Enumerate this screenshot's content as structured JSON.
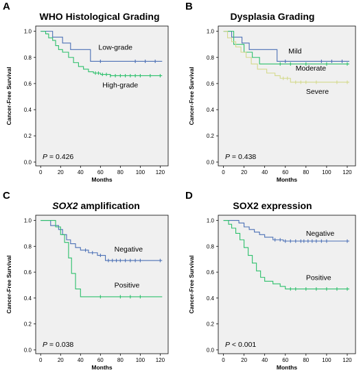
{
  "chart_data": [
    {
      "panel": "A",
      "type": "line",
      "title": "WHO Histological Grading",
      "xlabel": "Months",
      "ylabel": "Cancer-Free Survival",
      "xticks": [
        "0",
        "20",
        "40",
        "60",
        "80",
        "100",
        "120"
      ],
      "yticks": [
        "0.0",
        "0.2",
        "0.4",
        "0.6",
        "0.8",
        "1.0"
      ],
      "xlim": [
        -5,
        128
      ],
      "ylim": [
        -0.03,
        1.04
      ],
      "p_label": "P",
      "p_value": " = 0.426",
      "series": [
        {
          "name": "Low-grade",
          "color": "#4a6fb5",
          "label_pos": [
            58,
            0.86
          ],
          "steps": [
            [
              0,
              1.0
            ],
            [
              12,
              0.955
            ],
            [
              22,
              0.91
            ],
            [
              30,
              0.86
            ],
            [
              50,
              0.77
            ],
            [
              122,
              0.77
            ]
          ],
          "censored": [
            60,
            95,
            105,
            115
          ]
        },
        {
          "name": "High-grade",
          "color": "#2bbf6a",
          "label_pos": [
            62,
            0.57
          ],
          "steps": [
            [
              0,
              1.0
            ],
            [
              5,
              0.98
            ],
            [
              8,
              0.95
            ],
            [
              12,
              0.93
            ],
            [
              15,
              0.89
            ],
            [
              18,
              0.86
            ],
            [
              22,
              0.84
            ],
            [
              28,
              0.8
            ],
            [
              33,
              0.76
            ],
            [
              38,
              0.73
            ],
            [
              43,
              0.71
            ],
            [
              48,
              0.69
            ],
            [
              53,
              0.68
            ],
            [
              60,
              0.67
            ],
            [
              70,
              0.66
            ],
            [
              122,
              0.66
            ]
          ],
          "censored": [
            55,
            58,
            62,
            66,
            70,
            75,
            80,
            85,
            90,
            95,
            100,
            110,
            120
          ]
        }
      ]
    },
    {
      "panel": "B",
      "type": "line",
      "title": "Dysplasia Grading",
      "xlabel": "Months",
      "ylabel": "Cancer-Free Survival",
      "xticks": [
        "0",
        "20",
        "40",
        "60",
        "80",
        "100",
        "120"
      ],
      "yticks": [
        "0.0",
        "0.2",
        "0.4",
        "0.6",
        "0.8",
        "1.0"
      ],
      "xlim": [
        -5,
        128
      ],
      "ylim": [
        -0.03,
        1.04
      ],
      "p_label": "P",
      "p_value": " = 0.438",
      "series": [
        {
          "name": "Mild",
          "color": "#4a6fb5",
          "label_pos": [
            63,
            0.83
          ],
          "steps": [
            [
              0,
              1.0
            ],
            [
              8,
              0.955
            ],
            [
              18,
              0.91
            ],
            [
              25,
              0.86
            ],
            [
              52,
              0.77
            ],
            [
              122,
              0.77
            ]
          ],
          "censored": [
            60,
            95,
            105,
            115
          ]
        },
        {
          "name": "Moderate",
          "color": "#2bbf6a",
          "label_pos": [
            70,
            0.7
          ],
          "steps": [
            [
              0,
              1.0
            ],
            [
              10,
              0.9
            ],
            [
              20,
              0.84
            ],
            [
              28,
              0.8
            ],
            [
              35,
              0.75
            ],
            [
              122,
              0.75
            ]
          ],
          "censored": [
            55,
            65,
            80,
            100,
            120
          ]
        },
        {
          "name": "Severe",
          "color": "#d3d98a",
          "label_pos": [
            80,
            0.52
          ],
          "steps": [
            [
              0,
              1.0
            ],
            [
              4,
              0.95
            ],
            [
              8,
              0.92
            ],
            [
              12,
              0.88
            ],
            [
              17,
              0.84
            ],
            [
              22,
              0.8
            ],
            [
              27,
              0.75
            ],
            [
              33,
              0.71
            ],
            [
              42,
              0.68
            ],
            [
              50,
              0.66
            ],
            [
              55,
              0.64
            ],
            [
              65,
              0.61
            ],
            [
              122,
              0.61
            ]
          ],
          "censored": [
            58,
            62,
            70,
            75,
            80,
            90,
            110,
            120
          ]
        }
      ]
    },
    {
      "panel": "C",
      "type": "line",
      "title_italic": "SOX2",
      "title": " amplification",
      "xlabel": "Months",
      "ylabel": "Cancer-Free Survival",
      "xticks": [
        "0",
        "20",
        "40",
        "60",
        "80",
        "100",
        "120"
      ],
      "yticks": [
        "0.0",
        "0.2",
        "0.4",
        "0.6",
        "0.8",
        "1.0"
      ],
      "xlim": [
        -5,
        128
      ],
      "ylim": [
        -0.03,
        1.04
      ],
      "p_label": "P",
      "p_value": " = 0.038",
      "series": [
        {
          "name": "Negative",
          "color": "#4a6fb5",
          "label_pos": [
            74,
            0.76
          ],
          "steps": [
            [
              0,
              1.0
            ],
            [
              10,
              0.96
            ],
            [
              18,
              0.93
            ],
            [
              22,
              0.89
            ],
            [
              26,
              0.85
            ],
            [
              30,
              0.82
            ],
            [
              35,
              0.79
            ],
            [
              40,
              0.77
            ],
            [
              48,
              0.75
            ],
            [
              57,
              0.73
            ],
            [
              65,
              0.69
            ],
            [
              122,
              0.69
            ]
          ],
          "censored": [
            45,
            52,
            60,
            68,
            72,
            76,
            80,
            85,
            90,
            95,
            100,
            120
          ]
        },
        {
          "name": "Positive",
          "color": "#2bbf6a",
          "label_pos": [
            74,
            0.48
          ],
          "steps": [
            [
              0,
              1.0
            ],
            [
              15,
              0.95
            ],
            [
              20,
              0.89
            ],
            [
              24,
              0.83
            ],
            [
              28,
              0.71
            ],
            [
              31,
              0.59
            ],
            [
              35,
              0.47
            ],
            [
              40,
              0.41
            ],
            [
              122,
              0.41
            ]
          ],
          "censored": [
            60,
            80,
            90,
            100
          ]
        }
      ]
    },
    {
      "panel": "D",
      "type": "line",
      "title": "SOX2 expression",
      "xlabel": "Months",
      "ylabel": "Cancer-Free Survival",
      "xticks": [
        "0",
        "20",
        "40",
        "60",
        "80",
        "100",
        "120"
      ],
      "yticks": [
        "0.0",
        "0.2",
        "0.4",
        "0.6",
        "0.8",
        "1.0"
      ],
      "xlim": [
        -5,
        128
      ],
      "ylim": [
        -0.03,
        1.04
      ],
      "p_label": "P",
      "p_value": " < 0.001",
      "series": [
        {
          "name": "Negative",
          "color": "#4a6fb5",
          "label_pos": [
            80,
            0.88
          ],
          "steps": [
            [
              0,
              1.0
            ],
            [
              15,
              0.98
            ],
            [
              20,
              0.95
            ],
            [
              25,
              0.93
            ],
            [
              30,
              0.91
            ],
            [
              35,
              0.89
            ],
            [
              40,
              0.87
            ],
            [
              48,
              0.85
            ],
            [
              58,
              0.84
            ],
            [
              122,
              0.84
            ]
          ],
          "censored": [
            50,
            55,
            60,
            65,
            70,
            75,
            78,
            82,
            86,
            90,
            95,
            100,
            120
          ]
        },
        {
          "name": "Positive",
          "color": "#2bbf6a",
          "label_pos": [
            80,
            0.54
          ],
          "steps": [
            [
              0,
              1.0
            ],
            [
              5,
              0.97
            ],
            [
              8,
              0.94
            ],
            [
              12,
              0.9
            ],
            [
              16,
              0.85
            ],
            [
              20,
              0.79
            ],
            [
              24,
              0.73
            ],
            [
              28,
              0.67
            ],
            [
              32,
              0.61
            ],
            [
              36,
              0.56
            ],
            [
              40,
              0.53
            ],
            [
              48,
              0.51
            ],
            [
              55,
              0.49
            ],
            [
              60,
              0.47
            ],
            [
              122,
              0.47
            ]
          ],
          "censored": [
            65,
            70,
            80,
            90,
            100,
            110,
            120
          ]
        }
      ]
    }
  ]
}
